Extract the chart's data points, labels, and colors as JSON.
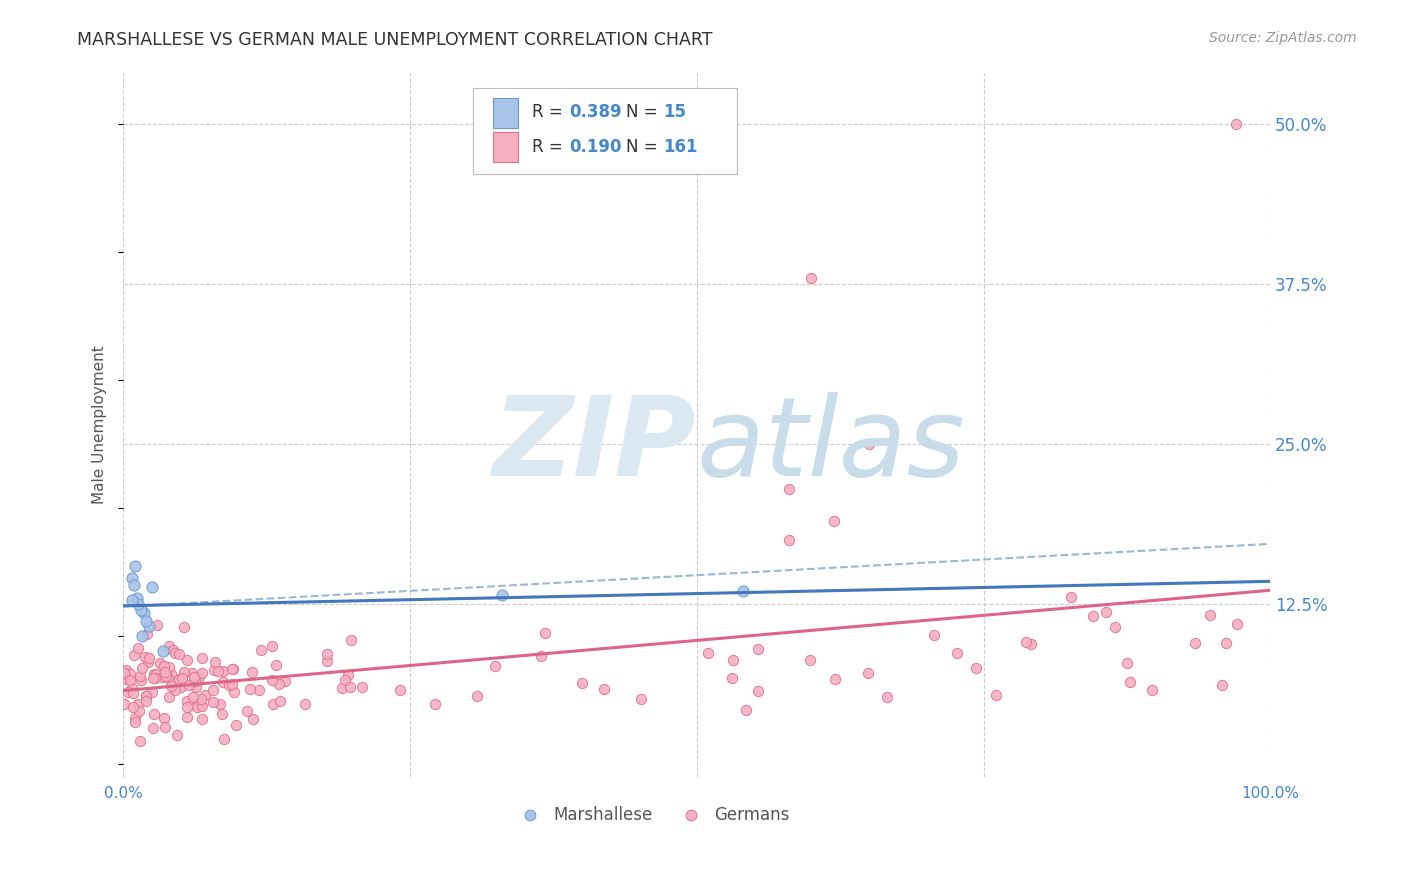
{
  "title": "MARSHALLESE VS GERMAN MALE UNEMPLOYMENT CORRELATION CHART",
  "source": "Source: ZipAtlas.com",
  "ylabel": "Male Unemployment",
  "xlim": [
    0.0,
    1.0
  ],
  "ylim": [
    -0.01,
    0.54
  ],
  "y_tick_labels": [
    "12.5%",
    "25.0%",
    "37.5%",
    "50.0%"
  ],
  "y_tick_positions": [
    0.125,
    0.25,
    0.375,
    0.5
  ],
  "grid_color": "#cccccc",
  "background_color": "#ffffff",
  "marshallese_color": "#a8c4e8",
  "marshallese_edge": "#6699cc",
  "german_color": "#f5afc0",
  "german_edge": "#e07090",
  "trendline_marshallese_color": "#4477bb",
  "trendline_german_color": "#dd6688",
  "dashed_line_color": "#88aad4",
  "right_axis_color": "#4488cc",
  "title_color": "#333333",
  "source_color": "#999999",
  "label_color": "#555555"
}
